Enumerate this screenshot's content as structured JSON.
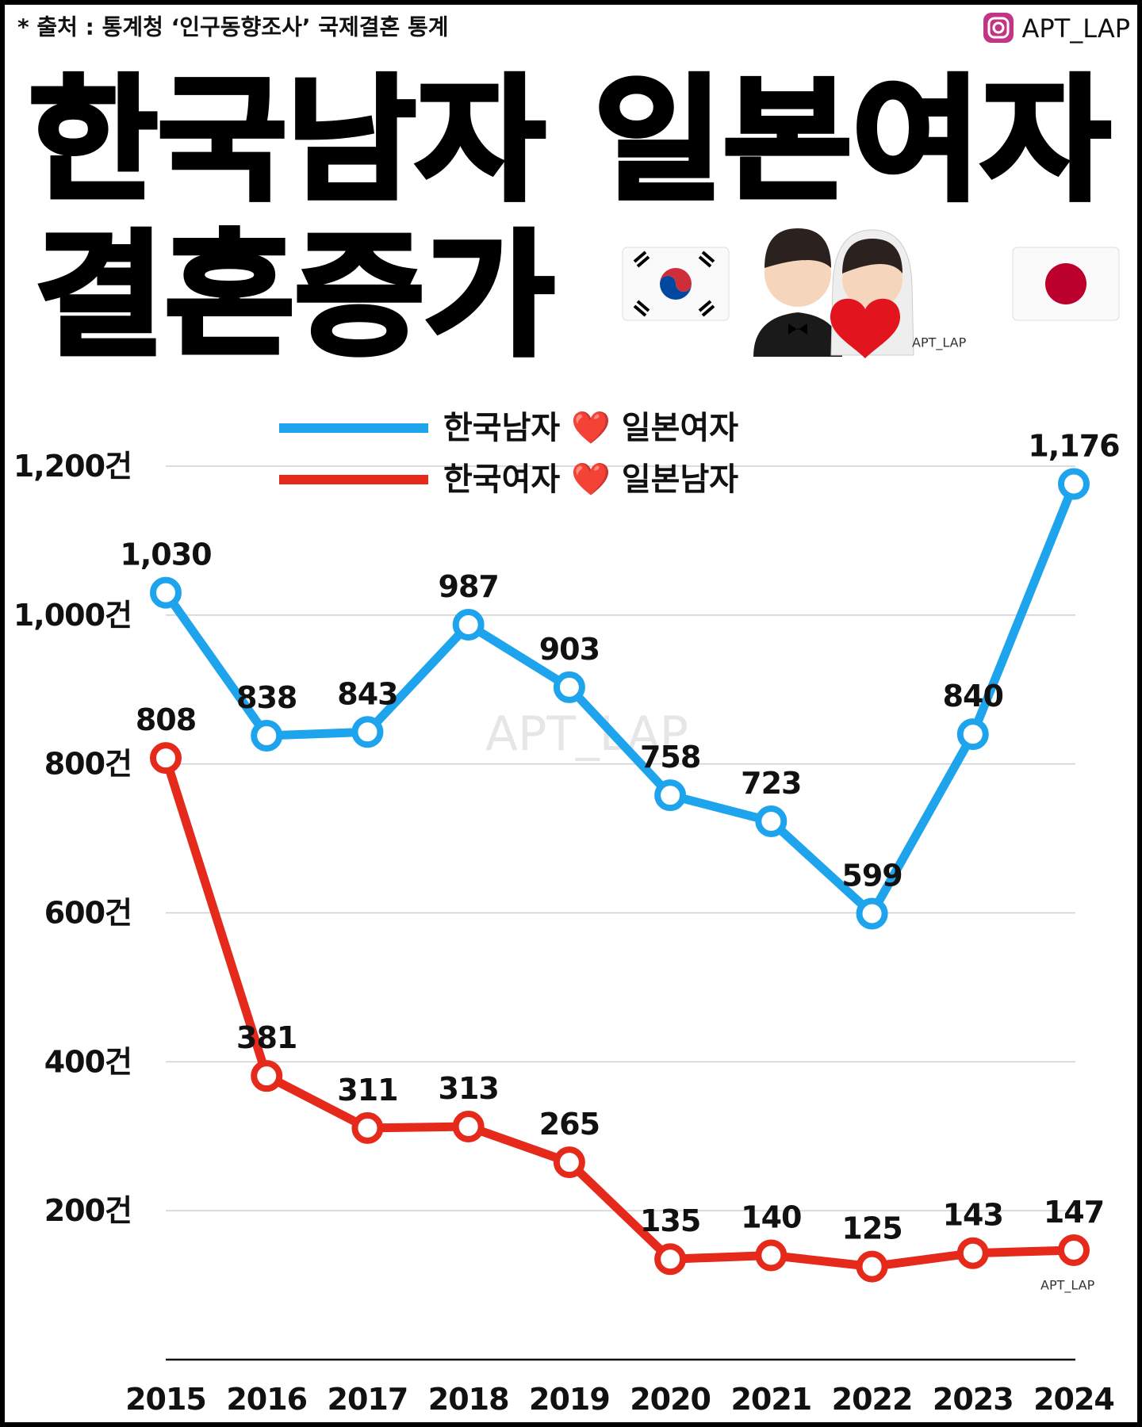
{
  "header": {
    "source": "* 출처 : 통계청 ‘인구동향조사’ 국제결혼 통계",
    "brand": "APT_LAP",
    "title_lines": [
      "한국남자 일본여자",
      "결혼증가"
    ],
    "watermarks": [
      "APT_LAP",
      "APT_LAP",
      "APT_LAP"
    ]
  },
  "chart_data": {
    "type": "line",
    "categories": [
      "2015",
      "2016",
      "2017",
      "2018",
      "2019",
      "2020",
      "2021",
      "2022",
      "2023",
      "2024"
    ],
    "series": [
      {
        "name": "한국남자 ❤️ 일본여자",
        "color": "#1ea4ec",
        "values": [
          1030,
          838,
          843,
          987,
          903,
          758,
          723,
          599,
          840,
          1176
        ],
        "value_labels": [
          "1,030",
          "838",
          "843",
          "987",
          "903",
          "758",
          "723",
          "599",
          "840",
          "1,176"
        ]
      },
      {
        "name": "한국여자 ❤️ 일본남자",
        "color": "#e5291b",
        "values": [
          808,
          381,
          311,
          313,
          265,
          135,
          140,
          125,
          143,
          147
        ]
      }
    ],
    "ylim": [
      0,
      1200
    ],
    "yticks": [
      {
        "value": 200,
        "label": "200건"
      },
      {
        "value": 400,
        "label": "400건"
      },
      {
        "value": 600,
        "label": "600건"
      },
      {
        "value": 800,
        "label": "800건"
      },
      {
        "value": 1000,
        "label": "1,000건"
      },
      {
        "value": 1200,
        "label": "1,200건"
      }
    ],
    "grid": true,
    "legend": "top"
  }
}
